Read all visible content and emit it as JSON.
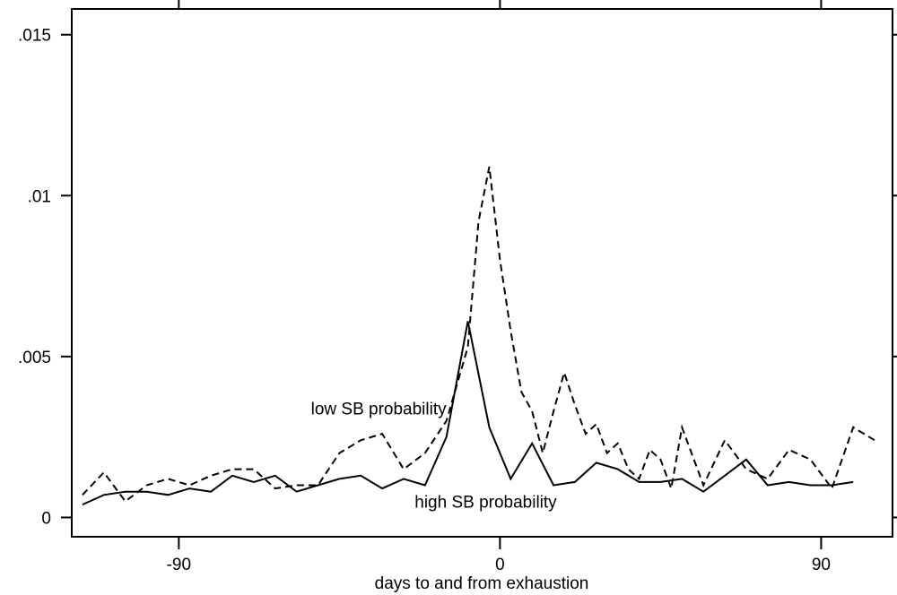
{
  "chart_data": {
    "type": "line",
    "title": "",
    "xlabel": "days to and from exhaustion",
    "ylabel": "",
    "xlim": [
      -120,
      110
    ],
    "ylim": [
      -0.0006,
      0.0158
    ],
    "grid": false,
    "x_ticks": [
      -90,
      0,
      90
    ],
    "x_tick_labels": [
      "-90",
      "0",
      "90"
    ],
    "y_ticks": [
      0,
      0.005,
      0.01,
      0.015
    ],
    "y_tick_labels": [
      "0",
      ".005",
      ".01",
      ".015"
    ],
    "series": [
      {
        "style": "dashed",
        "x": [
          -117,
          -111,
          -105,
          -99,
          -93,
          -87,
          -81,
          -75,
          -69,
          -63,
          -57,
          -51,
          -45,
          -39,
          -33,
          -27,
          -21,
          -15,
          -9,
          -6,
          -3,
          0,
          3,
          6,
          9,
          12,
          15,
          18,
          21,
          24,
          27,
          30,
          33,
          36,
          39,
          42,
          45,
          48,
          51,
          57,
          63,
          69,
          75,
          81,
          87,
          93,
          99,
          105
        ],
        "values": [
          0.0007,
          0.0014,
          0.0005,
          0.001,
          0.0012,
          0.001,
          0.0013,
          0.0015,
          0.0015,
          0.0009,
          0.001,
          0.001,
          0.002,
          0.0024,
          0.0026,
          0.0015,
          0.002,
          0.003,
          0.0053,
          0.0092,
          0.0109,
          0.008,
          0.0058,
          0.0039,
          0.0033,
          0.002,
          0.0033,
          0.0045,
          0.0035,
          0.0026,
          0.0029,
          0.002,
          0.0023,
          0.0015,
          0.0012,
          0.0021,
          0.0018,
          0.0009,
          0.0028,
          0.001,
          0.0024,
          0.0015,
          0.0012,
          0.0021,
          0.0018,
          0.0009,
          0.0028,
          0.0024
        ]
      },
      {
        "style": "solid",
        "x": [
          -117,
          -111,
          -105,
          -99,
          -93,
          -87,
          -81,
          -75,
          -69,
          -63,
          -57,
          -51,
          -45,
          -39,
          -33,
          -27,
          -21,
          -15,
          -9,
          -3,
          3,
          9,
          15,
          21,
          27,
          33,
          39,
          45,
          51,
          57,
          63,
          69,
          75,
          81,
          87,
          93,
          99
        ],
        "values": [
          0.0004,
          0.0007,
          0.0008,
          0.0008,
          0.0007,
          0.0009,
          0.0008,
          0.0013,
          0.0011,
          0.0013,
          0.0008,
          0.001,
          0.0012,
          0.0013,
          0.0009,
          0.0012,
          0.001,
          0.0025,
          0.0061,
          0.0028,
          0.0012,
          0.0023,
          0.001,
          0.0011,
          0.0017,
          0.0015,
          0.0011,
          0.0011,
          0.0012,
          0.0008,
          0.0013,
          0.0018,
          0.001,
          0.0011,
          0.001,
          0.001,
          0.0011
        ]
      }
    ],
    "annotations": [
      {
        "text": "low SB probability",
        "x": -34,
        "y": 0.0032
      },
      {
        "text": "high SB probability",
        "x": -4,
        "y": 0.0003
      }
    ]
  }
}
